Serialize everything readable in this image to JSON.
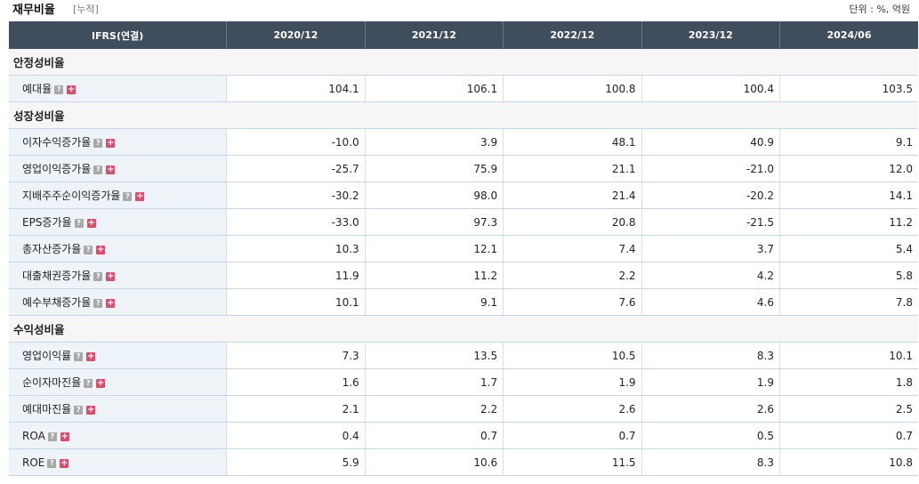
{
  "header": {
    "title": "재무비율",
    "subtitle": "[누적]",
    "unit": "단위 : %, 억원"
  },
  "table": {
    "header_label": "IFRS(연결)",
    "periods": [
      "2020/12",
      "2021/12",
      "2022/12",
      "2023/12",
      "2024/06"
    ],
    "help_icon_char": "?",
    "expand_icon_char": "+"
  },
  "sections": [
    {
      "title": "안정성비율",
      "rows": [
        {
          "label": "예대율",
          "values": [
            "104.1",
            "106.1",
            "100.8",
            "100.4",
            "103.5"
          ]
        }
      ]
    },
    {
      "title": "성장성비율",
      "rows": [
        {
          "label": "이자수익증가율",
          "values": [
            "-10.0",
            "3.9",
            "48.1",
            "40.9",
            "9.1"
          ]
        },
        {
          "label": "영업이익증가율",
          "values": [
            "-25.7",
            "75.9",
            "21.1",
            "-21.0",
            "12.0"
          ]
        },
        {
          "label": "지배주주순이익증가율",
          "values": [
            "-30.2",
            "98.0",
            "21.4",
            "-20.2",
            "14.1"
          ]
        },
        {
          "label": "EPS증가율",
          "values": [
            "-33.0",
            "97.3",
            "20.8",
            "-21.5",
            "11.2"
          ]
        },
        {
          "label": "총자산증가율",
          "values": [
            "10.3",
            "12.1",
            "7.4",
            "3.7",
            "5.4"
          ]
        },
        {
          "label": "대출채권증가율",
          "values": [
            "11.9",
            "11.2",
            "2.2",
            "4.2",
            "5.8"
          ]
        },
        {
          "label": "예수부채증가율",
          "values": [
            "10.1",
            "9.1",
            "7.6",
            "4.6",
            "7.8"
          ]
        }
      ]
    },
    {
      "title": "수익성비율",
      "rows": [
        {
          "label": "영업이익률",
          "values": [
            "7.3",
            "13.5",
            "10.5",
            "8.3",
            "10.1"
          ]
        },
        {
          "label": "순이자마진율",
          "values": [
            "1.6",
            "1.7",
            "1.9",
            "1.9",
            "1.8"
          ]
        },
        {
          "label": "예대마진율",
          "values": [
            "2.1",
            "2.2",
            "2.6",
            "2.6",
            "2.5"
          ]
        },
        {
          "label": "ROA",
          "values": [
            "0.4",
            "0.7",
            "0.7",
            "0.5",
            "0.7"
          ]
        },
        {
          "label": "ROE",
          "values": [
            "5.9",
            "10.6",
            "11.5",
            "8.3",
            "10.8"
          ]
        }
      ]
    }
  ],
  "colors": {
    "header_bg": "#3f4d5c",
    "label_bg": "#eef3f8",
    "negative": "#dd2222",
    "expand_icon": "#e24a6a"
  }
}
